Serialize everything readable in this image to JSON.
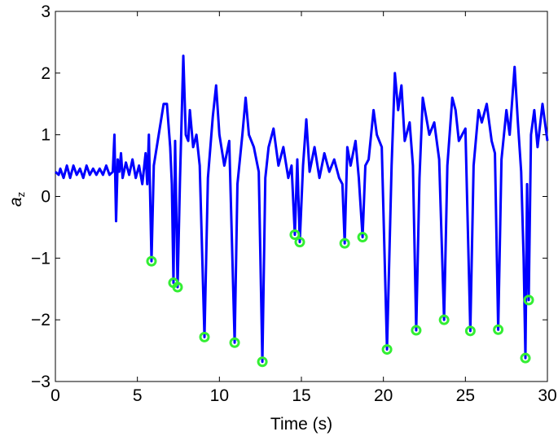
{
  "chart_data": {
    "type": "line",
    "xlabel": "Time (s)",
    "ylabel": {
      "main": "a",
      "sub": "z"
    },
    "xlim": [
      0,
      30
    ],
    "xticks": [
      0,
      5,
      10,
      15,
      20,
      25,
      30
    ],
    "ylim": [
      -3,
      3
    ],
    "yticks": [
      {
        "value": -3,
        "label": "−3"
      },
      {
        "value": -2,
        "label": "−2"
      },
      {
        "value": -1,
        "label": "−1"
      },
      0,
      1,
      2,
      3
    ],
    "grid": false,
    "series": [
      {
        "style": "line",
        "color": "#0000ff",
        "x": [
          0,
          0.2,
          0.3,
          0.5,
          0.7,
          0.9,
          1.1,
          1.3,
          1.5,
          1.7,
          1.9,
          2.1,
          2.3,
          2.5,
          2.7,
          2.9,
          3.1,
          3.3,
          3.5,
          3.6,
          3.7,
          3.8,
          3.9,
          4.0,
          4.1,
          4.3,
          4.5,
          4.7,
          4.9,
          5.1,
          5.3,
          5.5,
          5.6,
          5.7,
          5.86,
          6.0,
          6.3,
          6.6,
          6.8,
          7.0,
          7.1,
          7.2,
          7.3,
          7.45,
          7.6,
          7.8,
          7.95,
          8.1,
          8.2,
          8.4,
          8.6,
          8.8,
          9.09,
          9.3,
          9.6,
          9.8,
          10.0,
          10.3,
          10.6,
          10.93,
          11.1,
          11.4,
          11.6,
          11.8,
          12.1,
          12.4,
          12.62,
          12.8,
          13.0,
          13.3,
          13.6,
          13.9,
          14.2,
          14.4,
          14.6,
          14.75,
          14.9,
          15.1,
          15.3,
          15.5,
          15.8,
          16.1,
          16.4,
          16.7,
          17.0,
          17.3,
          17.5,
          17.64,
          17.8,
          18.0,
          18.3,
          18.5,
          18.73,
          18.9,
          19.1,
          19.4,
          19.6,
          19.9,
          20.22,
          20.5,
          20.7,
          20.9,
          21.1,
          21.3,
          21.6,
          21.8,
          22.0,
          22.2,
          22.4,
          22.6,
          22.8,
          23.1,
          23.4,
          23.7,
          23.9,
          24.2,
          24.4,
          24.6,
          25.0,
          25.3,
          25.5,
          25.8,
          26.0,
          26.3,
          26.6,
          26.8,
          27.0,
          27.2,
          27.5,
          27.7,
          28.0,
          28.2,
          28.4,
          28.55,
          28.66,
          28.76,
          28.86,
          29.0,
          29.2,
          29.4,
          29.7,
          30
        ],
        "values": [
          0.4,
          0.35,
          0.45,
          0.3,
          0.5,
          0.3,
          0.5,
          0.35,
          0.45,
          0.3,
          0.5,
          0.35,
          0.45,
          0.35,
          0.45,
          0.35,
          0.5,
          0.35,
          0.4,
          1.0,
          -0.4,
          0.6,
          0.4,
          0.7,
          0.3,
          0.55,
          0.35,
          0.6,
          0.3,
          0.5,
          0.2,
          0.7,
          0.2,
          1.0,
          -1.05,
          0.5,
          1.0,
          1.5,
          1.5,
          0.8,
          0.2,
          -1.4,
          0.9,
          -1.47,
          0.3,
          2.28,
          1.0,
          0.9,
          1.4,
          0.8,
          1.0,
          0.5,
          -2.28,
          0.3,
          1.3,
          1.8,
          1.0,
          0.5,
          0.9,
          -2.37,
          0.2,
          1.0,
          1.6,
          1.0,
          0.8,
          0.4,
          -2.68,
          0.3,
          0.8,
          1.1,
          0.5,
          0.8,
          0.3,
          0.5,
          -0.62,
          0.6,
          -0.74,
          0.5,
          1.25,
          0.4,
          0.8,
          0.3,
          0.7,
          0.4,
          0.6,
          0.3,
          0.2,
          -0.76,
          0.8,
          0.5,
          0.9,
          0.3,
          -0.66,
          0.5,
          0.6,
          1.4,
          1.0,
          0.8,
          -2.48,
          0.5,
          2.0,
          1.4,
          1.8,
          0.9,
          1.2,
          0.5,
          -2.17,
          0.3,
          1.6,
          1.3,
          1.0,
          1.2,
          0.6,
          -2.0,
          0.5,
          1.6,
          1.4,
          0.9,
          1.1,
          -2.18,
          0.5,
          1.4,
          1.2,
          1.5,
          0.9,
          0.7,
          -2.16,
          0.6,
          1.4,
          1.0,
          2.1,
          1.2,
          0.4,
          -1.0,
          -2.62,
          0.2,
          -1.68,
          1.0,
          1.4,
          0.8,
          1.5,
          0.9
        ]
      },
      {
        "style": "markers",
        "color": "#33ee33",
        "x": [
          5.86,
          7.2,
          7.45,
          9.09,
          10.93,
          12.62,
          14.6,
          14.9,
          17.64,
          18.73,
          20.22,
          22.0,
          23.7,
          25.3,
          27.0,
          28.66,
          28.86
        ],
        "values": [
          -1.05,
          -1.4,
          -1.47,
          -2.28,
          -2.37,
          -2.68,
          -0.62,
          -0.74,
          -0.76,
          -0.66,
          -2.48,
          -2.17,
          -2.0,
          -2.18,
          -2.16,
          -2.62,
          -1.68
        ]
      }
    ]
  }
}
